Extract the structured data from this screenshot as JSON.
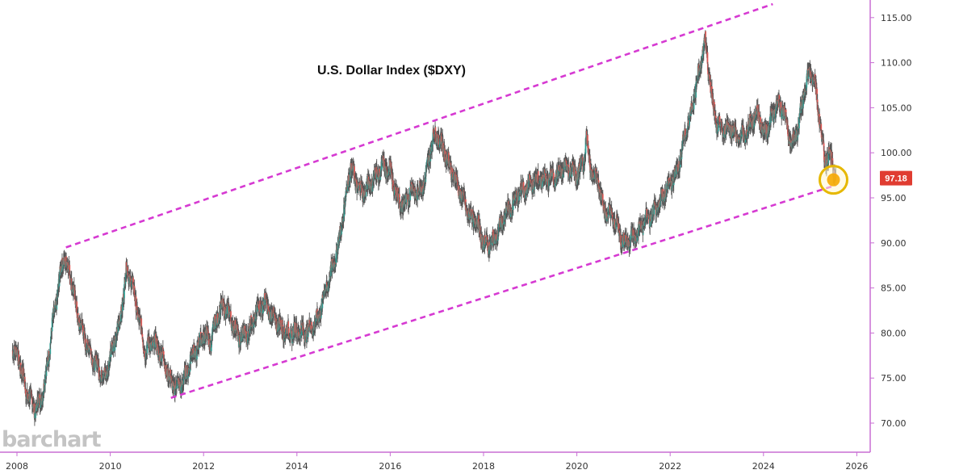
{
  "chart_data": {
    "type": "line",
    "title": "U.S. Dollar Index ($DXY)",
    "xlabel": "",
    "ylabel": "",
    "x_tick_labels": [
      "2008",
      "2010",
      "2012",
      "2014",
      "2016",
      "2018",
      "2020",
      "2022",
      "2024",
      "2026"
    ],
    "y_tick_labels": [
      "70.00",
      "75.00",
      "80.00",
      "85.00",
      "90.00",
      "95.00",
      "100.00",
      "105.00",
      "110.00",
      "115.00"
    ],
    "ylim": [
      67,
      117
    ],
    "xlim": [
      2007.9,
      2026.3
    ],
    "grid": false,
    "last_price": "97.18",
    "colors": {
      "candle_up": "#26a69a",
      "candle_down": "#ef5350",
      "price_line": "#6b6b6b",
      "channel": "#d63ad2",
      "axis": "#c86fd4",
      "price_tag": "#e03c31",
      "highlight_ring": "#e6b800",
      "highlight_fill": "#f6a800"
    },
    "series": [
      {
        "x": [
          2007.9,
          2008.05,
          2008.2,
          2008.3,
          2008.4,
          2008.5,
          2008.6,
          2008.75,
          2008.9,
          2009.0,
          2009.15,
          2009.3,
          2009.45,
          2009.6,
          2009.75,
          2009.9,
          2010.0,
          2010.2,
          2010.35,
          2010.45,
          2010.6,
          2010.75,
          2010.9,
          2011.0,
          2011.15,
          2011.3,
          2011.45,
          2011.6,
          2011.75,
          2011.9,
          2012.0,
          2012.15,
          2012.3,
          2012.45,
          2012.6,
          2012.75,
          2012.9,
          2013.0,
          2013.15,
          2013.3,
          2013.45,
          2013.6,
          2013.75,
          2013.9,
          2014.0,
          2014.15,
          2014.3,
          2014.45,
          2014.6,
          2014.75,
          2014.9,
          2015.0,
          2015.15,
          2015.25,
          2015.4,
          2015.55,
          2015.7,
          2015.85,
          2016.0,
          2016.15,
          2016.3,
          2016.45,
          2016.6,
          2016.75,
          2016.9,
          2017.0,
          2017.1,
          2017.25,
          2017.4,
          2017.55,
          2017.7,
          2017.85,
          2018.0,
          2018.15,
          2018.3,
          2018.45,
          2018.6,
          2018.75,
          2018.9,
          2019.0,
          2019.15,
          2019.3,
          2019.45,
          2019.6,
          2019.75,
          2019.9,
          2020.0,
          2020.15,
          2020.2,
          2020.3,
          2020.45,
          2020.6,
          2020.75,
          2020.9,
          2021.0,
          2021.15,
          2021.3,
          2021.45,
          2021.6,
          2021.75,
          2021.9,
          2022.0,
          2022.15,
          2022.3,
          2022.45,
          2022.6,
          2022.75,
          2022.9,
          2023.0,
          2023.15,
          2023.3,
          2023.45,
          2023.6,
          2023.75,
          2023.9,
          2024.0,
          2024.15,
          2024.3,
          2024.45,
          2024.6,
          2024.75,
          2024.9,
          2025.0,
          2025.1,
          2025.2,
          2025.3,
          2025.45,
          2025.55
        ],
        "y": [
          78.5,
          77.0,
          73.5,
          72.5,
          71.6,
          72.5,
          74.5,
          80.5,
          85.5,
          88.5,
          86.5,
          82.0,
          79.5,
          77.5,
          76.0,
          75.0,
          77.5,
          81.0,
          87.0,
          86.0,
          82.0,
          78.0,
          79.0,
          78.5,
          77.0,
          74.5,
          74.0,
          75.0,
          77.5,
          78.5,
          80.0,
          79.0,
          82.0,
          83.0,
          81.5,
          79.5,
          79.8,
          80.5,
          82.5,
          83.5,
          82.0,
          81.0,
          80.2,
          80.0,
          80.3,
          80.0,
          80.5,
          81.5,
          84.5,
          87.0,
          90.0,
          93.5,
          98.5,
          97.0,
          95.5,
          96.5,
          97.5,
          98.5,
          98.0,
          95.0,
          94.0,
          96.0,
          95.5,
          97.0,
          101.5,
          102.0,
          101.0,
          99.0,
          97.0,
          95.0,
          93.0,
          92.5,
          90.0,
          89.8,
          91.0,
          93.0,
          94.0,
          95.5,
          96.0,
          96.5,
          97.0,
          97.0,
          97.2,
          97.5,
          98.5,
          98.0,
          97.5,
          99.0,
          102.0,
          98.0,
          97.0,
          93.5,
          93.0,
          91.5,
          90.0,
          90.5,
          91.0,
          92.5,
          93.0,
          94.0,
          96.0,
          96.5,
          98.0,
          101.5,
          104.5,
          108.5,
          112.5,
          106.0,
          103.0,
          102.5,
          103.0,
          101.5,
          102.0,
          103.5,
          104.5,
          102.0,
          103.5,
          105.5,
          104.5,
          100.5,
          103.0,
          107.5,
          109.0,
          108.0,
          104.0,
          99.5,
          99.5,
          97.2
        ]
      }
    ],
    "annotations": {
      "upper_channel": {
        "x": [
          2009.05,
          2024.2
        ],
        "y": [
          89.5,
          116.5
        ]
      },
      "lower_channel": {
        "x": [
          2011.3,
          2025.55
        ],
        "y": [
          72.8,
          96.4
        ]
      },
      "highlight_circle": {
        "x": 2025.5,
        "y": 97.0
      }
    }
  }
}
